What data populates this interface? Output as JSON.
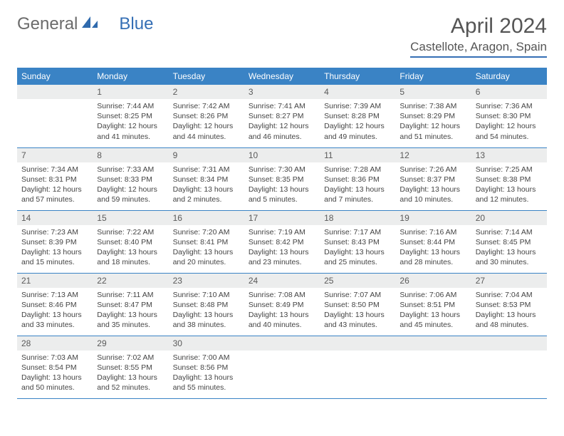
{
  "brand": {
    "part1": "General",
    "part2": "Blue"
  },
  "title": "April 2024",
  "location": "Castellote, Aragon, Spain",
  "colors": {
    "header_bg": "#3a83c5",
    "header_text": "#ffffff",
    "daynum_bg": "#eceded",
    "rule": "#356fb5",
    "text": "#333333"
  },
  "layout": {
    "cols": 7,
    "rows": 5,
    "first_weekday_offset": 1
  },
  "weekdays": [
    "Sunday",
    "Monday",
    "Tuesday",
    "Wednesday",
    "Thursday",
    "Friday",
    "Saturday"
  ],
  "days": [
    {
      "n": 1,
      "sunrise": "7:44 AM",
      "sunset": "8:25 PM",
      "daylight": "12 hours and 41 minutes."
    },
    {
      "n": 2,
      "sunrise": "7:42 AM",
      "sunset": "8:26 PM",
      "daylight": "12 hours and 44 minutes."
    },
    {
      "n": 3,
      "sunrise": "7:41 AM",
      "sunset": "8:27 PM",
      "daylight": "12 hours and 46 minutes."
    },
    {
      "n": 4,
      "sunrise": "7:39 AM",
      "sunset": "8:28 PM",
      "daylight": "12 hours and 49 minutes."
    },
    {
      "n": 5,
      "sunrise": "7:38 AM",
      "sunset": "8:29 PM",
      "daylight": "12 hours and 51 minutes."
    },
    {
      "n": 6,
      "sunrise": "7:36 AM",
      "sunset": "8:30 PM",
      "daylight": "12 hours and 54 minutes."
    },
    {
      "n": 7,
      "sunrise": "7:34 AM",
      "sunset": "8:31 PM",
      "daylight": "12 hours and 57 minutes."
    },
    {
      "n": 8,
      "sunrise": "7:33 AM",
      "sunset": "8:33 PM",
      "daylight": "12 hours and 59 minutes."
    },
    {
      "n": 9,
      "sunrise": "7:31 AM",
      "sunset": "8:34 PM",
      "daylight": "13 hours and 2 minutes."
    },
    {
      "n": 10,
      "sunrise": "7:30 AM",
      "sunset": "8:35 PM",
      "daylight": "13 hours and 5 minutes."
    },
    {
      "n": 11,
      "sunrise": "7:28 AM",
      "sunset": "8:36 PM",
      "daylight": "13 hours and 7 minutes."
    },
    {
      "n": 12,
      "sunrise": "7:26 AM",
      "sunset": "8:37 PM",
      "daylight": "13 hours and 10 minutes."
    },
    {
      "n": 13,
      "sunrise": "7:25 AM",
      "sunset": "8:38 PM",
      "daylight": "13 hours and 12 minutes."
    },
    {
      "n": 14,
      "sunrise": "7:23 AM",
      "sunset": "8:39 PM",
      "daylight": "13 hours and 15 minutes."
    },
    {
      "n": 15,
      "sunrise": "7:22 AM",
      "sunset": "8:40 PM",
      "daylight": "13 hours and 18 minutes."
    },
    {
      "n": 16,
      "sunrise": "7:20 AM",
      "sunset": "8:41 PM",
      "daylight": "13 hours and 20 minutes."
    },
    {
      "n": 17,
      "sunrise": "7:19 AM",
      "sunset": "8:42 PM",
      "daylight": "13 hours and 23 minutes."
    },
    {
      "n": 18,
      "sunrise": "7:17 AM",
      "sunset": "8:43 PM",
      "daylight": "13 hours and 25 minutes."
    },
    {
      "n": 19,
      "sunrise": "7:16 AM",
      "sunset": "8:44 PM",
      "daylight": "13 hours and 28 minutes."
    },
    {
      "n": 20,
      "sunrise": "7:14 AM",
      "sunset": "8:45 PM",
      "daylight": "13 hours and 30 minutes."
    },
    {
      "n": 21,
      "sunrise": "7:13 AM",
      "sunset": "8:46 PM",
      "daylight": "13 hours and 33 minutes."
    },
    {
      "n": 22,
      "sunrise": "7:11 AM",
      "sunset": "8:47 PM",
      "daylight": "13 hours and 35 minutes."
    },
    {
      "n": 23,
      "sunrise": "7:10 AM",
      "sunset": "8:48 PM",
      "daylight": "13 hours and 38 minutes."
    },
    {
      "n": 24,
      "sunrise": "7:08 AM",
      "sunset": "8:49 PM",
      "daylight": "13 hours and 40 minutes."
    },
    {
      "n": 25,
      "sunrise": "7:07 AM",
      "sunset": "8:50 PM",
      "daylight": "13 hours and 43 minutes."
    },
    {
      "n": 26,
      "sunrise": "7:06 AM",
      "sunset": "8:51 PM",
      "daylight": "13 hours and 45 minutes."
    },
    {
      "n": 27,
      "sunrise": "7:04 AM",
      "sunset": "8:53 PM",
      "daylight": "13 hours and 48 minutes."
    },
    {
      "n": 28,
      "sunrise": "7:03 AM",
      "sunset": "8:54 PM",
      "daylight": "13 hours and 50 minutes."
    },
    {
      "n": 29,
      "sunrise": "7:02 AM",
      "sunset": "8:55 PM",
      "daylight": "13 hours and 52 minutes."
    },
    {
      "n": 30,
      "sunrise": "7:00 AM",
      "sunset": "8:56 PM",
      "daylight": "13 hours and 55 minutes."
    }
  ],
  "labels": {
    "sunrise": "Sunrise: ",
    "sunset": "Sunset: ",
    "daylight": "Daylight: "
  }
}
